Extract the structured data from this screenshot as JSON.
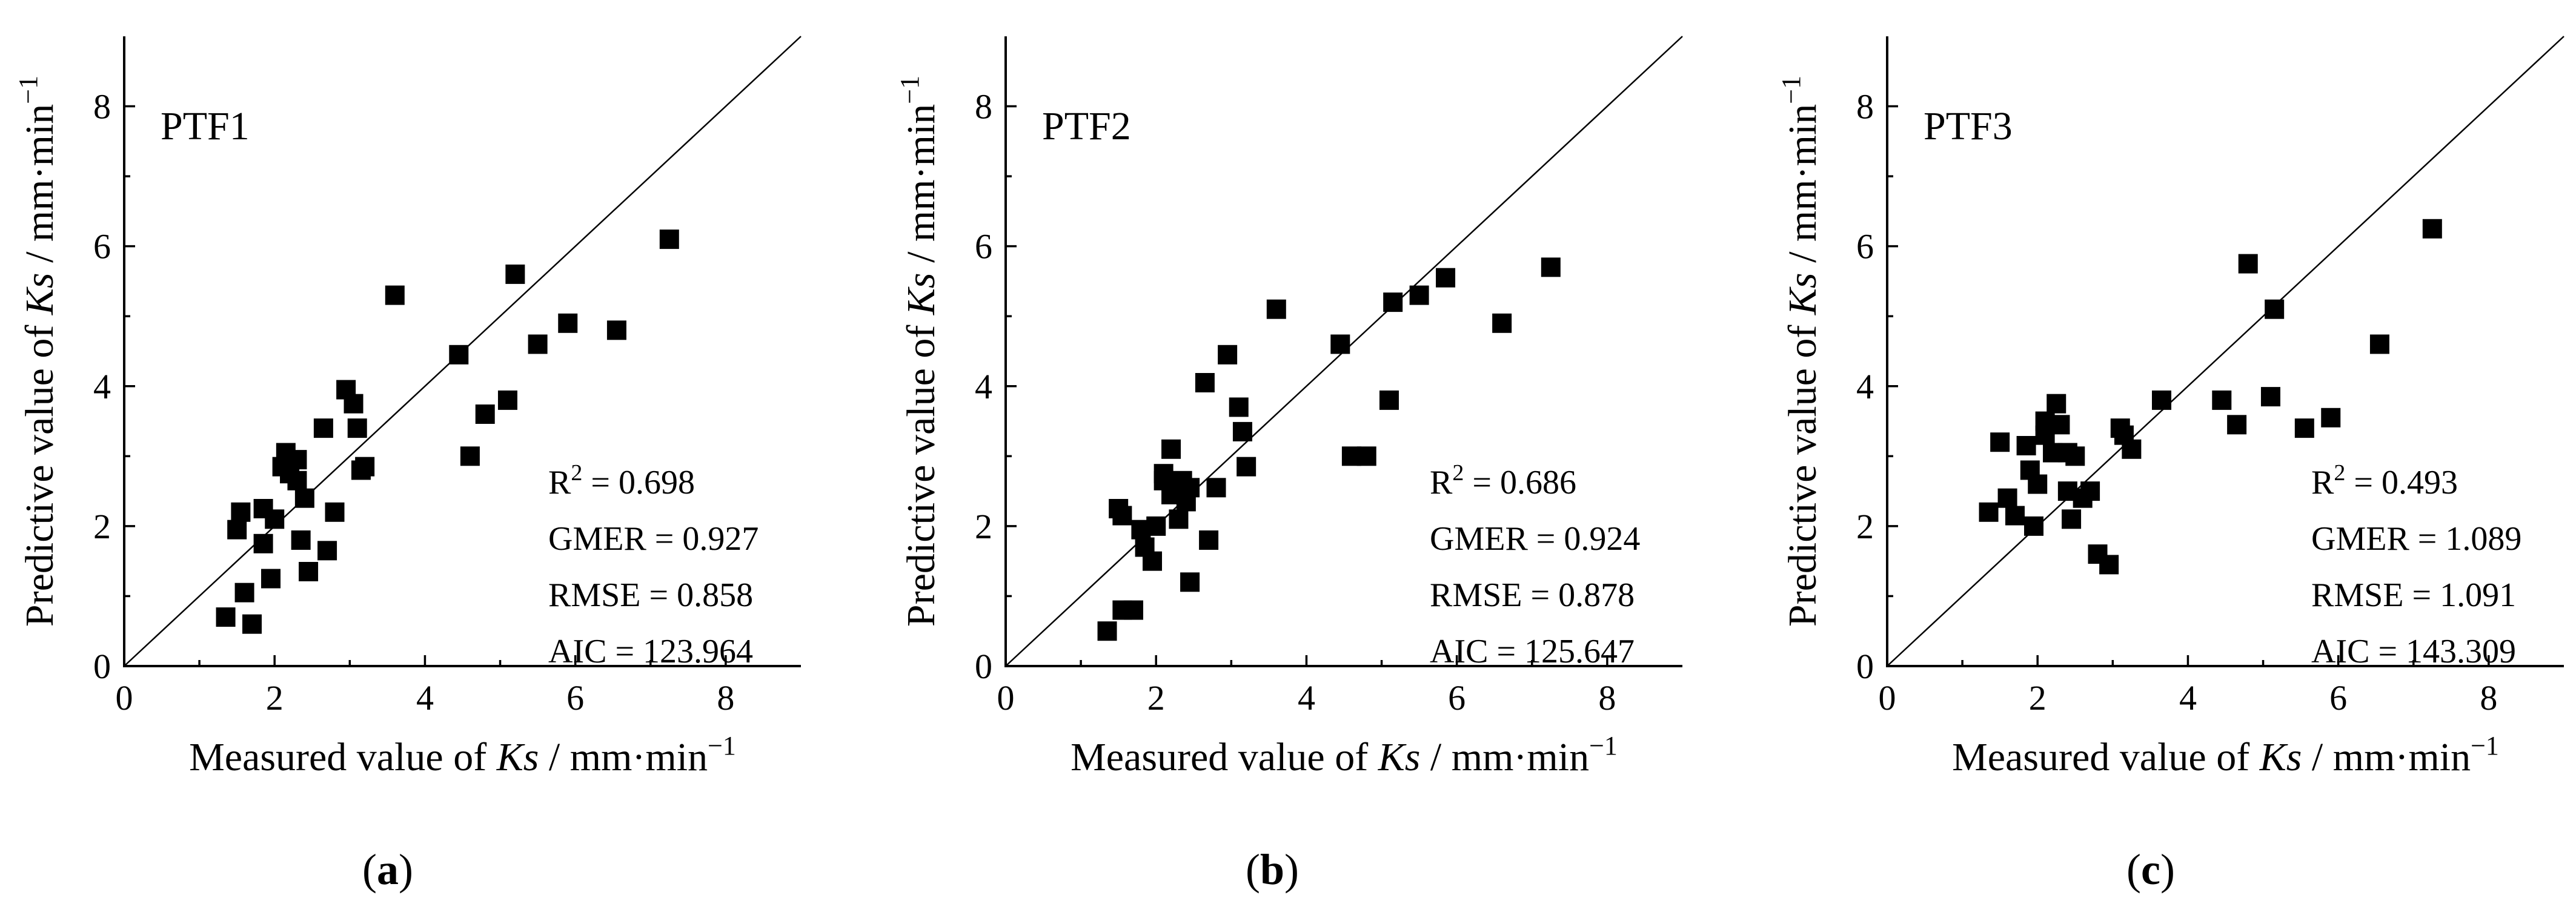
{
  "chart_data": [
    {
      "type": "scatter",
      "panel": "a",
      "title": "PTF1",
      "caption": {
        "open": "(",
        "letter": "a",
        "close": ")"
      },
      "xlabel": {
        "prefix": "Measured value of ",
        "italic": "Ks",
        "suffix": " / mm·min",
        "sup": "−1"
      },
      "ylabel": {
        "prefix": "Predictive value of ",
        "italic": "Ks",
        "suffix": " / mm·min",
        "sup": "−1"
      },
      "xlim": [
        0,
        9
      ],
      "ylim": [
        0,
        9
      ],
      "xticks": [
        0,
        2,
        4,
        6,
        8
      ],
      "yticks": [
        0,
        2,
        4,
        6,
        8
      ],
      "reference_line": "1:1",
      "stats": [
        {
          "label": "R",
          "sup": "2",
          "value": " = 0.698"
        },
        {
          "label": "GMER",
          "sup": "",
          "value": " = 0.927"
        },
        {
          "label": "RMSE",
          "sup": "",
          "value": " = 0.858"
        },
        {
          "label": "AIC",
          "sup": "",
          "value": " = 123.964"
        }
      ],
      "points": [
        [
          1.35,
          0.7
        ],
        [
          1.6,
          1.05
        ],
        [
          1.7,
          0.6
        ],
        [
          1.5,
          1.95
        ],
        [
          1.55,
          2.2
        ],
        [
          1.85,
          2.25
        ],
        [
          1.85,
          1.75
        ],
        [
          1.95,
          1.25
        ],
        [
          2.0,
          2.1
        ],
        [
          2.1,
          2.85
        ],
        [
          2.15,
          3.05
        ],
        [
          2.2,
          2.75
        ],
        [
          2.3,
          2.95
        ],
        [
          2.3,
          2.65
        ],
        [
          2.4,
          2.4
        ],
        [
          2.35,
          1.8
        ],
        [
          2.45,
          1.35
        ],
        [
          2.65,
          3.4
        ],
        [
          2.7,
          1.65
        ],
        [
          2.8,
          2.2
        ],
        [
          2.95,
          3.95
        ],
        [
          3.05,
          3.75
        ],
        [
          3.1,
          3.4
        ],
        [
          3.15,
          2.8
        ],
        [
          3.2,
          2.85
        ],
        [
          3.6,
          5.3
        ],
        [
          4.45,
          4.45
        ],
        [
          4.6,
          3.0
        ],
        [
          4.8,
          3.6
        ],
        [
          5.1,
          3.8
        ],
        [
          5.2,
          5.6
        ],
        [
          5.5,
          4.6
        ],
        [
          5.9,
          4.9
        ],
        [
          6.55,
          4.8
        ],
        [
          7.25,
          6.1
        ]
      ]
    },
    {
      "type": "scatter",
      "panel": "b",
      "title": "PTF2",
      "caption": {
        "open": "(",
        "letter": "b",
        "close": ")"
      },
      "xlabel": {
        "prefix": "Measured value of ",
        "italic": "Ks",
        "suffix": " / mm·min",
        "sup": "−1"
      },
      "ylabel": {
        "prefix": "Predictive value of ",
        "italic": "Ks",
        "suffix": " / mm·min",
        "sup": "−1"
      },
      "xlim": [
        0,
        9
      ],
      "ylim": [
        0,
        9
      ],
      "xticks": [
        0,
        2,
        4,
        6,
        8
      ],
      "yticks": [
        0,
        2,
        4,
        6,
        8
      ],
      "reference_line": "1:1",
      "stats": [
        {
          "label": "R",
          "sup": "2",
          "value": " = 0.686"
        },
        {
          "label": "GMER",
          "sup": "",
          "value": " = 0.924"
        },
        {
          "label": "RMSE",
          "sup": "",
          "value": " = 0.878"
        },
        {
          "label": "AIC",
          "sup": "",
          "value": " = 125.647"
        }
      ],
      "points": [
        [
          1.35,
          0.5
        ],
        [
          1.55,
          0.8
        ],
        [
          1.7,
          0.8
        ],
        [
          1.5,
          2.25
        ],
        [
          1.55,
          2.15
        ],
        [
          1.8,
          1.95
        ],
        [
          1.85,
          1.7
        ],
        [
          1.95,
          1.5
        ],
        [
          2.0,
          2.0
        ],
        [
          2.1,
          2.75
        ],
        [
          2.1,
          2.65
        ],
        [
          2.2,
          3.1
        ],
        [
          2.2,
          2.45
        ],
        [
          2.3,
          2.1
        ],
        [
          2.35,
          2.65
        ],
        [
          2.4,
          2.35
        ],
        [
          2.45,
          2.55
        ],
        [
          2.45,
          1.2
        ],
        [
          2.65,
          4.05
        ],
        [
          2.7,
          1.8
        ],
        [
          2.8,
          2.55
        ],
        [
          2.95,
          4.45
        ],
        [
          3.1,
          3.7
        ],
        [
          3.15,
          3.35
        ],
        [
          3.2,
          2.85
        ],
        [
          3.6,
          5.1
        ],
        [
          4.45,
          4.6
        ],
        [
          4.6,
          3.0
        ],
        [
          4.8,
          3.0
        ],
        [
          5.1,
          3.8
        ],
        [
          5.15,
          5.2
        ],
        [
          5.5,
          5.3
        ],
        [
          5.85,
          5.55
        ],
        [
          6.6,
          4.9
        ],
        [
          7.25,
          5.7
        ]
      ]
    },
    {
      "type": "scatter",
      "panel": "c",
      "title": "PTF3",
      "caption": {
        "open": "(",
        "letter": "c",
        "close": ")"
      },
      "xlabel": {
        "prefix": "Measured value of ",
        "italic": "Ks",
        "suffix": " / mm·min",
        "sup": "−1"
      },
      "ylabel": {
        "prefix": "Predictive value of ",
        "italic": "Ks",
        "suffix": " / mm·min",
        "sup": "−1"
      },
      "xlim": [
        0,
        9
      ],
      "ylim": [
        0,
        9
      ],
      "xticks": [
        0,
        2,
        4,
        6,
        8
      ],
      "yticks": [
        0,
        2,
        4,
        6,
        8
      ],
      "reference_line": "1:1",
      "stats": [
        {
          "label": "R",
          "sup": "2",
          "value": " = 0.493"
        },
        {
          "label": "GMER",
          "sup": "",
          "value": " = 1.089"
        },
        {
          "label": "RMSE",
          "sup": "",
          "value": " = 1.091"
        },
        {
          "label": "AIC",
          "sup": "",
          "value": " = 143.309"
        }
      ],
      "points": [
        [
          1.35,
          2.2
        ],
        [
          1.5,
          3.2
        ],
        [
          1.6,
          2.4
        ],
        [
          1.7,
          2.15
        ],
        [
          1.85,
          3.15
        ],
        [
          1.9,
          2.8
        ],
        [
          1.95,
          2.0
        ],
        [
          2.0,
          2.6
        ],
        [
          2.1,
          3.5
        ],
        [
          2.1,
          3.3
        ],
        [
          2.2,
          3.05
        ],
        [
          2.25,
          3.75
        ],
        [
          2.3,
          3.45
        ],
        [
          2.4,
          3.05
        ],
        [
          2.4,
          2.5
        ],
        [
          2.45,
          2.1
        ],
        [
          2.5,
          3.0
        ],
        [
          2.6,
          2.4
        ],
        [
          2.7,
          2.5
        ],
        [
          2.8,
          1.6
        ],
        [
          2.95,
          1.45
        ],
        [
          3.1,
          3.4
        ],
        [
          3.15,
          3.3
        ],
        [
          3.25,
          3.1
        ],
        [
          3.65,
          3.8
        ],
        [
          4.45,
          3.8
        ],
        [
          4.65,
          3.45
        ],
        [
          4.8,
          5.75
        ],
        [
          5.1,
          3.85
        ],
        [
          5.15,
          5.1
        ],
        [
          5.55,
          3.4
        ],
        [
          5.9,
          3.55
        ],
        [
          6.55,
          4.6
        ],
        [
          7.25,
          6.25
        ]
      ]
    }
  ]
}
